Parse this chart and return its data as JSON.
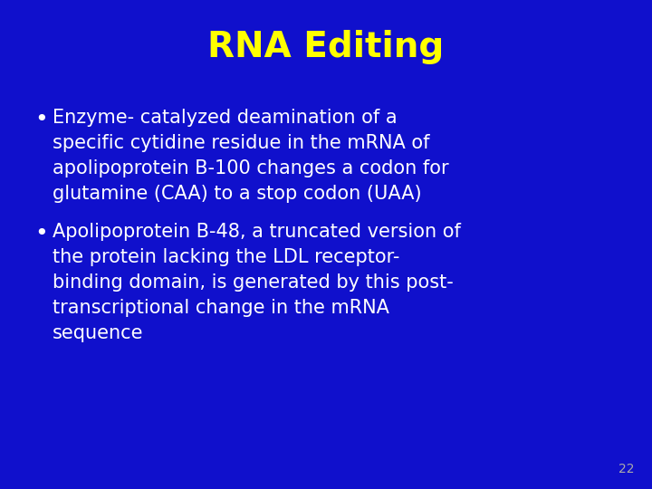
{
  "background_color": "#1010CC",
  "title": "RNA Editing",
  "title_color": "#FFFF00",
  "title_fontsize": 28,
  "title_fontweight": "bold",
  "bullet_color": "#FFFFFF",
  "bullet_fontsize": 15,
  "page_number": "22",
  "page_number_color": "#AAAAAA",
  "page_number_fontsize": 10,
  "bullet1_lines": [
    "Enzyme- catalyzed deamination of a",
    "specific cytidine residue in the mRNA of",
    "apolipoprotein B-100 changes a codon for",
    "glutamine (CAA) to a stop codon (UAA)"
  ],
  "bullet2_lines": [
    "Apolipoprotein B-48, a truncated version of",
    "the protein lacking the LDL receptor-",
    "binding domain, is generated by this post-",
    "transcriptional change in the mRNA",
    "sequence"
  ]
}
